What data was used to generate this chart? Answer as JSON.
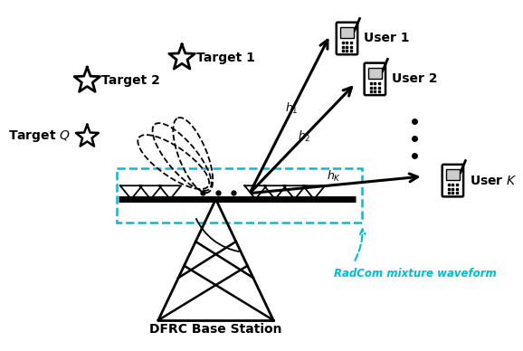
{
  "bg_color": "#ffffff",
  "cyan_color": "#00bcd4",
  "black_color": "#000000",
  "labels": {
    "target1": "Target 1",
    "target2": "Target 2",
    "targetQ": "Target $Q$",
    "user1": "User 1",
    "user2": "User 2",
    "userK": "User $K$",
    "h1": "$h_1$",
    "h2": "$h_2$",
    "hK": "$h_K$",
    "radcom": "RadCom mixture waveform",
    "bs": "DFRC Base Station"
  },
  "fig_w": 5.78,
  "fig_h": 3.88,
  "dpi": 100
}
